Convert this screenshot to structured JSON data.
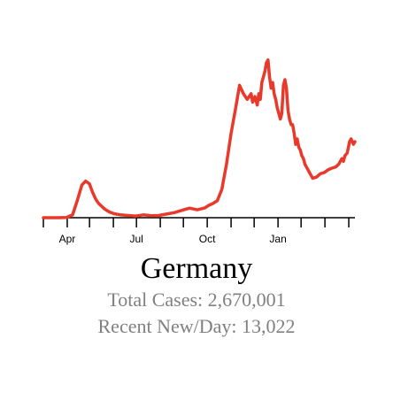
{
  "colors": {
    "line": "#e8392a",
    "axis": "#000000",
    "stats_text": "#808080"
  },
  "country": "Germany",
  "stats": {
    "total_cases_label": "Total Cases: 2,670,001",
    "recent_new_per_day_label": "Recent New/Day: 13,022"
  },
  "chart_data": {
    "type": "line",
    "title": "Germany",
    "xlabel": "",
    "ylabel": "",
    "grid": false,
    "legend": "none",
    "x_axis_ticks": [
      "Apr",
      "Jul",
      "Oct",
      "Jan"
    ],
    "x_tick_days": [
      0,
      31,
      60,
      91,
      121,
      152,
      182,
      213,
      244,
      274,
      305,
      335,
      366,
      397
    ],
    "x_label_days": [
      31,
      121,
      213,
      305
    ],
    "x_range_days": [
      0,
      405
    ],
    "ylim": [
      0,
      30000
    ],
    "series": [
      {
        "name": "",
        "x_days": [
          0,
          10,
          20,
          30,
          38,
          44,
          50,
          55,
          60,
          64,
          68,
          72,
          76,
          80,
          86,
          92,
          100,
          110,
          120,
          130,
          140,
          150,
          160,
          170,
          180,
          190,
          200,
          210,
          215,
          220,
          226,
          232,
          238,
          244,
          250,
          255,
          260,
          265,
          270,
          272,
          275,
          278,
          280,
          282,
          284,
          286,
          288,
          290,
          292,
          294,
          296,
          298,
          300,
          302,
          304,
          306,
          308,
          310,
          312,
          314,
          316,
          318,
          320,
          322,
          324,
          326,
          328,
          330,
          332,
          334,
          336,
          338,
          340,
          342,
          344,
          346,
          348,
          350,
          355,
          360,
          365,
          370,
          375,
          380,
          384,
          388,
          390,
          392,
          395,
          398,
          400,
          403,
          405
        ],
        "values": [
          0,
          0,
          0,
          50,
          500,
          3000,
          5800,
          6500,
          6000,
          4500,
          3300,
          2500,
          2000,
          1500,
          1000,
          700,
          500,
          400,
          300,
          500,
          350,
          400,
          650,
          900,
          1300,
          1700,
          1400,
          1750,
          2200,
          2500,
          3000,
          5000,
          9500,
          15000,
          19500,
          23500,
          22000,
          21000,
          22000,
          20500,
          21500,
          20000,
          22000,
          21000,
          24000,
          25000,
          26000,
          27500,
          28000,
          25000,
          23000,
          24000,
          22000,
          21000,
          19500,
          18500,
          17500,
          18500,
          23500,
          24500,
          23000,
          19000,
          17500,
          16500,
          16500,
          15000,
          13000,
          14000,
          12500,
          12000,
          11000,
          10500,
          9500,
          9000,
          8500,
          8000,
          7500,
          7000,
          7200,
          7800,
          8000,
          8500,
          8800,
          9000,
          9500,
          10500,
          10000,
          11000,
          11500,
          13500,
          14000,
          13022,
          13500
        ]
      }
    ]
  }
}
